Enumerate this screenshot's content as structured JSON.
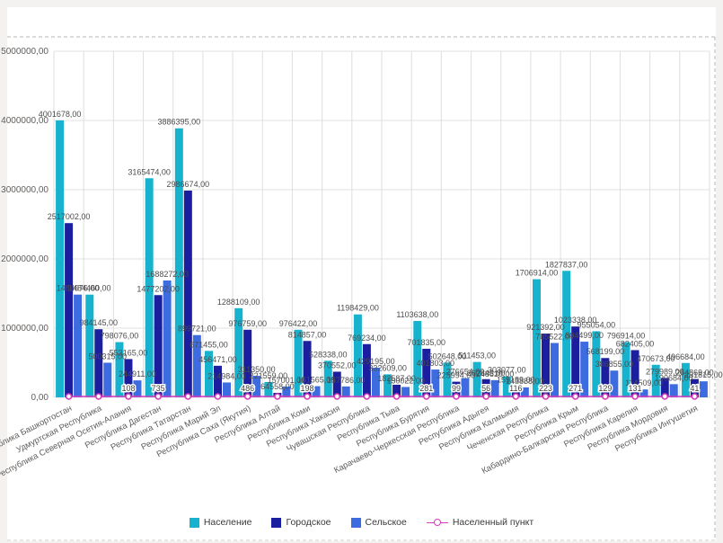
{
  "legend": {
    "items": [
      {
        "label": "Население",
        "color": "#17b3ce",
        "shape": "square"
      },
      {
        "label": "Городское",
        "color": "#1b1e9e",
        "shape": "square"
      },
      {
        "label": "Сельское",
        "color": "#3c6ce0",
        "shape": "square"
      },
      {
        "label": "Населенный пункт",
        "color": "#d83bbb",
        "shape": "line-circle"
      }
    ]
  },
  "chart_data": {
    "type": "bar",
    "title": "",
    "xlabel": "",
    "ylabel": "",
    "grid": true,
    "legend_position": "bottom",
    "y_axis": {
      "min": 0,
      "max": 5000000,
      "tick_step": 1000000,
      "tick_labels": [
        "0,00",
        "1000000,00",
        "2000000,00",
        "3000000,00",
        "4000000,00",
        "5000000,00"
      ]
    },
    "value_label_suffix": ",00",
    "categories": [
      "Республика Башкортостан",
      "Удмуртская Республика",
      "Республика Северная Осетия-Алания",
      "Республика Дагестан",
      "Республика Татарстан",
      "Республика Марий Эл",
      "Республика Саха (Якутия)",
      "Республика Алтай",
      "Республика Коми",
      "Республика Хакасия",
      "Чувашская Республика",
      "Республика Тыва",
      "Республика Бурятия",
      "Карачаево-Черкесская Республика",
      "Республика Адыгея",
      "Республика Калмыкия",
      "Чеченская Республика",
      "Республика Крым",
      "Кабардино-Балкарская Республика",
      "Республика Карелия",
      "Республика Мордовия",
      "Республика Ингушетия"
    ],
    "series": [
      {
        "name": "Население",
        "type": "bar",
        "color": "#17b3ce",
        "values": [
          4001678,
          1484460,
          798076,
          3165474,
          3886395,
          671455,
          1288109,
          221559,
          976422,
          528338,
          1198429,
          332609,
          1103638,
          502648,
          511453,
          303077,
          1706914,
          1827837,
          955054,
          796914,
          470673,
          496684
        ]
      },
      {
        "name": "Городское",
        "type": "bar",
        "color": "#1b1e9e",
        "values": [
          2517002,
          984145,
          553165,
          1477202,
          2986674,
          456471,
          976759,
          64558,
          814857,
          370552,
          769234,
          182587,
          701835,
          225994,
          262843,
          159189,
          921392,
          1023338,
          568199,
          682405,
          279989,
          264869
        ]
      },
      {
        "name": "Сельское",
        "type": "bar",
        "color": "#3c6ce0",
        "values": [
          1484676,
          500315,
          244911,
          1688272,
          899721,
          214984,
          311350,
          157001,
          161565,
          157786,
          429195,
          150022,
          401803,
          276654,
          248610,
          143888,
          785522,
          804499,
          386855,
          114509,
          190684,
          231815
        ]
      },
      {
        "name": "Населенный пункт",
        "type": "line",
        "color": "#d83bbb",
        "marker": "circle",
        "value_labels": [
          null,
          null,
          "108",
          "735",
          null,
          null,
          "486",
          null,
          "198",
          null,
          null,
          null,
          "281",
          "99",
          "56",
          "116",
          "223",
          "271",
          "129",
          "131",
          null,
          "41"
        ]
      }
    ]
  }
}
